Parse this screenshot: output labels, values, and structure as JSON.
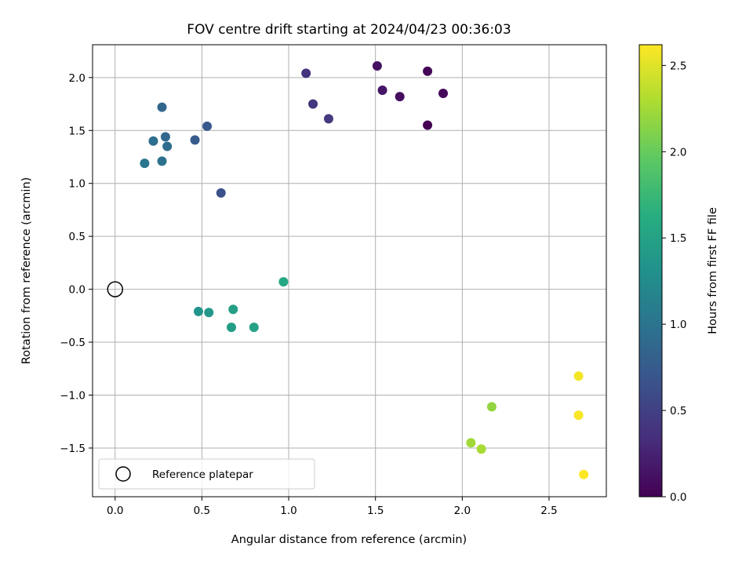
{
  "chart_data": {
    "type": "scatter",
    "title": "FOV centre drift starting at 2024/04/23 00:36:03",
    "xlabel": "Angular distance from reference (arcmin)",
    "ylabel": "Rotation from reference (arcmin)",
    "xlim": [
      -0.13,
      2.83
    ],
    "ylim": [
      -1.96,
      2.31
    ],
    "xticks": [
      "0.0",
      "0.5",
      "1.0",
      "1.5",
      "2.0",
      "2.5"
    ],
    "xtick_values": [
      0,
      0.5,
      1.0,
      1.5,
      2.0,
      2.5
    ],
    "yticks": [
      "−1.5",
      "−1.0",
      "−0.5",
      "0.0",
      "0.5",
      "1.0",
      "1.5",
      "2.0"
    ],
    "ytick_values": [
      -1.5,
      -1.0,
      -0.5,
      0.0,
      0.5,
      1.0,
      1.5,
      2.0
    ],
    "grid": true,
    "colormap": "viridis",
    "colorbar": {
      "label": "Hours from first FF file",
      "range": [
        0,
        2.62
      ],
      "ticks": [
        "0.0",
        "0.5",
        "1.0",
        "1.5",
        "2.0",
        "2.5"
      ],
      "tick_values": [
        0,
        0.5,
        1.0,
        1.5,
        2.0,
        2.5
      ]
    },
    "reference_point": {
      "x": 0.0,
      "y": 0.0
    },
    "legend": {
      "location": "lower-left",
      "entries": [
        "Reference platepar"
      ]
    },
    "points": [
      {
        "x": 1.8,
        "y": 1.55,
        "hours": 0.0
      },
      {
        "x": 1.8,
        "y": 2.06,
        "hours": 0.03
      },
      {
        "x": 1.89,
        "y": 1.85,
        "hours": 0.06
      },
      {
        "x": 1.64,
        "y": 1.82,
        "hours": 0.1
      },
      {
        "x": 1.51,
        "y": 2.11,
        "hours": 0.13
      },
      {
        "x": 1.54,
        "y": 1.88,
        "hours": 0.16
      },
      {
        "x": 1.1,
        "y": 2.04,
        "hours": 0.38
      },
      {
        "x": 1.14,
        "y": 1.75,
        "hours": 0.41
      },
      {
        "x": 1.23,
        "y": 1.61,
        "hours": 0.44
      },
      {
        "x": 0.61,
        "y": 0.91,
        "hours": 0.65
      },
      {
        "x": 0.53,
        "y": 1.54,
        "hours": 0.72
      },
      {
        "x": 0.46,
        "y": 1.41,
        "hours": 0.75
      },
      {
        "x": 0.27,
        "y": 1.72,
        "hours": 0.86
      },
      {
        "x": 0.29,
        "y": 1.44,
        "hours": 0.89
      },
      {
        "x": 0.3,
        "y": 1.35,
        "hours": 0.92
      },
      {
        "x": 0.22,
        "y": 1.4,
        "hours": 0.95
      },
      {
        "x": 0.27,
        "y": 1.21,
        "hours": 0.98
      },
      {
        "x": 0.17,
        "y": 1.19,
        "hours": 1.01
      },
      {
        "x": 0.48,
        "y": -0.21,
        "hours": 1.36
      },
      {
        "x": 0.54,
        "y": -0.22,
        "hours": 1.39
      },
      {
        "x": 0.67,
        "y": -0.36,
        "hours": 1.45
      },
      {
        "x": 0.68,
        "y": -0.19,
        "hours": 1.47
      },
      {
        "x": 0.8,
        "y": -0.36,
        "hours": 1.5
      },
      {
        "x": 0.97,
        "y": 0.07,
        "hours": 1.56
      },
      {
        "x": 2.17,
        "y": -1.11,
        "hours": 2.18
      },
      {
        "x": 2.05,
        "y": -1.45,
        "hours": 2.24
      },
      {
        "x": 2.11,
        "y": -1.51,
        "hours": 2.27
      },
      {
        "x": 2.67,
        "y": -0.82,
        "hours": 2.58
      },
      {
        "x": 2.67,
        "y": -1.19,
        "hours": 2.6
      },
      {
        "x": 2.7,
        "y": -1.75,
        "hours": 2.62
      }
    ]
  }
}
